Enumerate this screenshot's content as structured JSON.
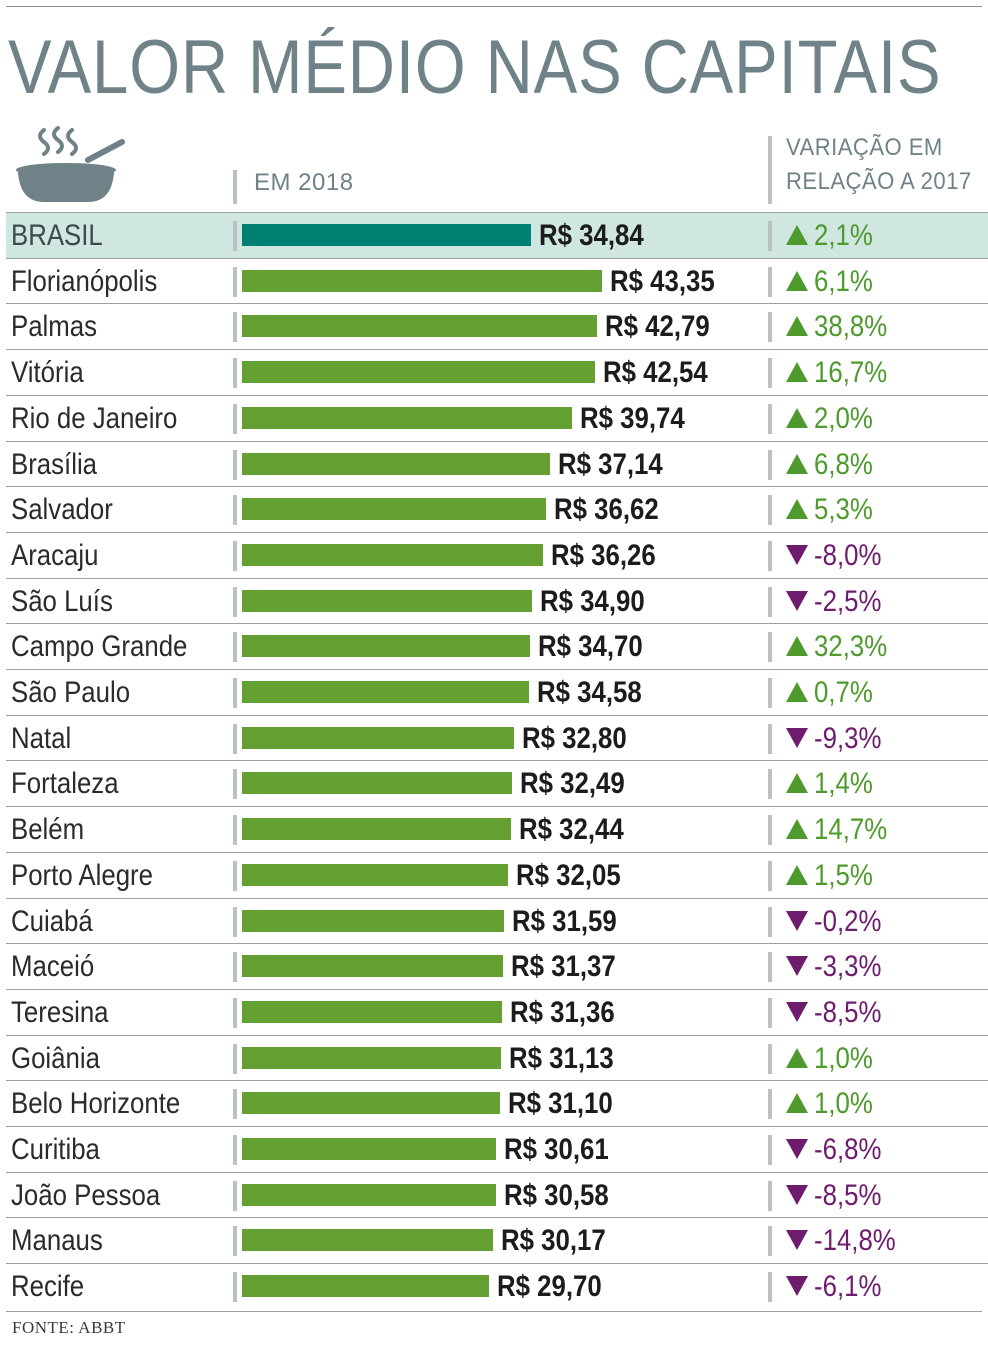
{
  "title": "VALOR MÉDIO NAS CAPITAIS",
  "header": {
    "value_column": "EM 2018",
    "variation_column_line1": "VARIAÇÃO EM",
    "variation_column_line2": "RELAÇÃO A 2017"
  },
  "icon": "bowl-with-steam-icon",
  "colors": {
    "title": "#6f8287",
    "bar": "#64a032",
    "bar_highlight": "#008072",
    "highlight_row": "#cfe6e1",
    "up": "#4e9a2c",
    "down": "#6e1c6e"
  },
  "source": "FONTE: ABBT",
  "chart_data": {
    "type": "bar",
    "orientation": "horizontal",
    "title": "VALOR MÉDIO NAS CAPITAIS",
    "value_label": "EM 2018",
    "variation_label": "VARIAÇÃO EM RELAÇÃO A 2017",
    "categories": [
      "BRASIL",
      "Florianópolis",
      "Palmas",
      "Vitória",
      "Rio de Janeiro",
      "Brasília",
      "Salvador",
      "Aracaju",
      "São Luís",
      "Campo Grande",
      "São Paulo",
      "Natal",
      "Fortaleza",
      "Belém",
      "Porto Alegre",
      "Cuiabá",
      "Maceió",
      "Teresina",
      "Goiânia",
      "Belo Horizonte",
      "Curitiba",
      "João Pessoa",
      "Manaus",
      "Recife"
    ],
    "values": [
      34.84,
      43.35,
      42.79,
      42.54,
      39.74,
      37.14,
      36.62,
      36.26,
      34.9,
      34.7,
      34.58,
      32.8,
      32.49,
      32.44,
      32.05,
      31.59,
      31.37,
      31.36,
      31.13,
      31.1,
      30.61,
      30.58,
      30.17,
      29.7
    ],
    "value_labels": [
      "R$ 34,84",
      "R$ 43,35",
      "R$ 42,79",
      "R$ 42,54",
      "R$ 39,74",
      "R$ 37,14",
      "R$ 36,62",
      "R$ 36,26",
      "R$ 34,90",
      "R$ 34,70",
      "R$ 34,58",
      "R$ 32,80",
      "R$ 32,49",
      "R$ 32,44",
      "R$ 32,05",
      "R$ 31,59",
      "R$ 31,37",
      "R$ 31,36",
      "R$ 31,13",
      "R$ 31,10",
      "R$ 30,61",
      "R$ 30,58",
      "R$ 30,17",
      "R$ 29,70"
    ],
    "variation": [
      2.1,
      6.1,
      38.8,
      16.7,
      2.0,
      6.8,
      5.3,
      -8.0,
      -2.5,
      32.3,
      0.7,
      -9.3,
      1.4,
      14.7,
      1.5,
      -0.2,
      -3.3,
      -8.5,
      1.0,
      1.0,
      -6.8,
      -8.5,
      -14.8,
      -6.1
    ],
    "variation_labels": [
      "2,1%",
      "6,1%",
      "38,8%",
      "16,7%",
      "2,0%",
      "6,8%",
      "5,3%",
      "-8,0%",
      "-2,5%",
      "32,3%",
      "0,7%",
      "-9,3%",
      "1,4%",
      "14,7%",
      "1,5%",
      "-0,2%",
      "-3,3%",
      "-8,5%",
      "1,0%",
      "1,0%",
      "-6,8%",
      "-8,5%",
      "-14,8%",
      "-6,1%"
    ],
    "highlighted_category": "BRASIL",
    "grid": false
  }
}
